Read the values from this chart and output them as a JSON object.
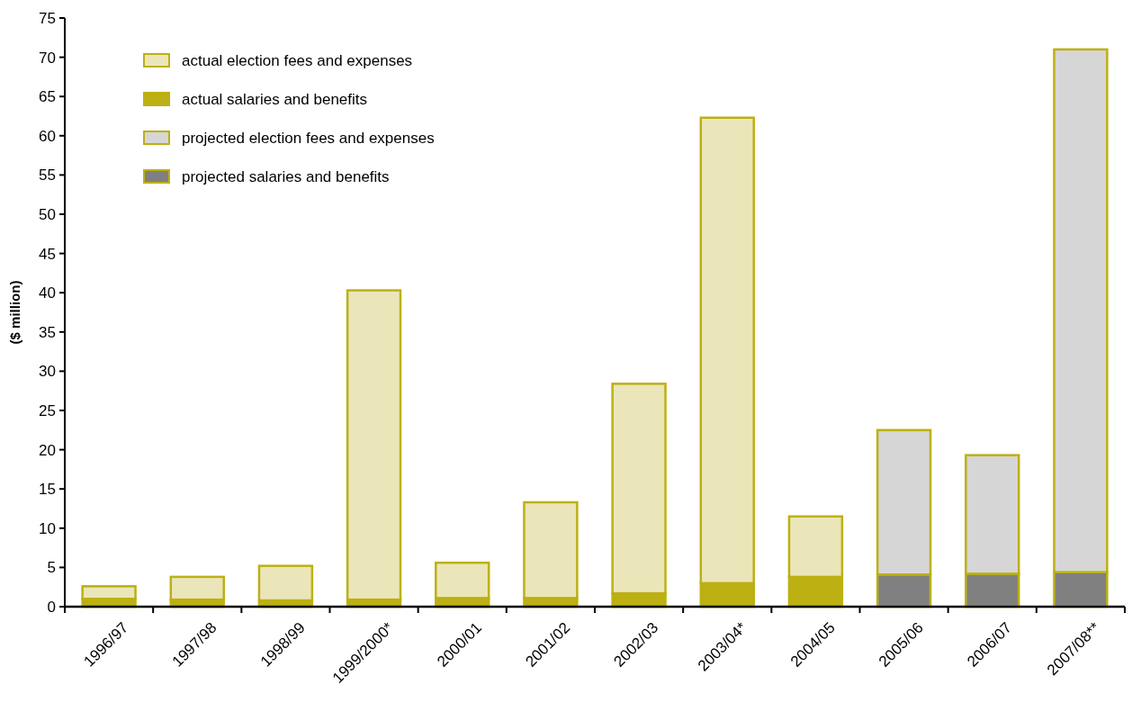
{
  "chart_data": {
    "type": "bar",
    "stacked": true,
    "ylabel": "($ million)",
    "categories": [
      "1996/97",
      "1997/98",
      "1998/99",
      "1999/2000*",
      "2000/01",
      "2001/02",
      "2002/03",
      "2003/04*",
      "2004/05",
      "2005/06",
      "2006/07",
      "2007/08**"
    ],
    "series": [
      {
        "name": "actual salaries and benefits",
        "color": "#bcb013",
        "values": [
          1.0,
          0.9,
          0.8,
          0.9,
          1.1,
          1.1,
          1.7,
          3.0,
          3.8,
          null,
          null,
          null
        ]
      },
      {
        "name": "actual election fees and expenses",
        "color": "#ebe6b9",
        "values": [
          1.6,
          2.9,
          4.4,
          39.4,
          4.5,
          12.2,
          26.7,
          59.3,
          7.7,
          null,
          null,
          null
        ]
      },
      {
        "name": "projected salaries and benefits",
        "color": "#808080",
        "values": [
          null,
          null,
          null,
          null,
          null,
          null,
          null,
          null,
          null,
          4.1,
          4.2,
          4.4
        ]
      },
      {
        "name": "projected election fees and expenses",
        "color": "#d6d6d6",
        "values": [
          null,
          null,
          null,
          null,
          null,
          null,
          null,
          null,
          null,
          18.4,
          15.1,
          66.6
        ]
      }
    ],
    "ylim": [
      0,
      75
    ],
    "yticks": [
      0,
      5,
      10,
      15,
      20,
      25,
      30,
      35,
      40,
      45,
      50,
      55,
      60,
      65,
      70,
      75
    ],
    "legend": "top left",
    "grid": false
  }
}
